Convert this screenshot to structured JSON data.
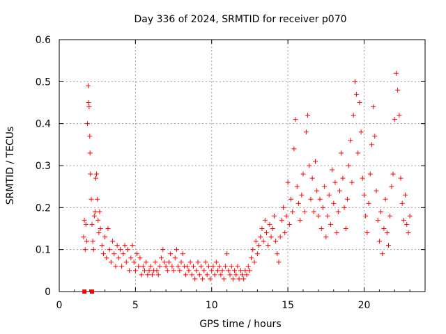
{
  "chart_data": {
    "type": "scatter",
    "title": "Day 336 of 2024, SRMTID for receiver p070",
    "xlabel": "GPS time / hours",
    "ylabel": "SRMTID / TECUs",
    "xlim": [
      0,
      24
    ],
    "ylim": [
      0,
      0.6
    ],
    "xticks": [
      0,
      5,
      10,
      15,
      20
    ],
    "yticks": [
      0,
      0.1,
      0.2,
      0.3,
      0.4,
      0.5,
      0.6
    ],
    "xtick_labels": [
      "0",
      "5",
      "10",
      "15",
      "20"
    ],
    "ytick_labels": [
      "0",
      "0.1",
      "0.2",
      "0.3",
      "0.4",
      "0.5",
      "0.6"
    ],
    "grid": true,
    "marker": "+",
    "series": [
      {
        "name": "SRMTID",
        "color": "#ff0000",
        "points": [
          [
            1.6,
            0.13
          ],
          [
            1.65,
            0.17
          ],
          [
            1.7,
            0.1
          ],
          [
            1.75,
            0.16
          ],
          [
            1.8,
            0.12
          ],
          [
            1.85,
            0.4
          ],
          [
            1.9,
            0.49
          ],
          [
            1.93,
            0.45
          ],
          [
            1.96,
            0.44
          ],
          [
            2.0,
            0.37
          ],
          [
            2.02,
            0.33
          ],
          [
            2.05,
            0.28
          ],
          [
            2.1,
            0.22
          ],
          [
            2.15,
            0.16
          ],
          [
            2.2,
            0.12
          ],
          [
            2.25,
            0.1
          ],
          [
            2.3,
            0.18
          ],
          [
            2.35,
            0.19
          ],
          [
            2.4,
            0.27
          ],
          [
            2.45,
            0.28
          ],
          [
            2.5,
            0.22
          ],
          [
            2.55,
            0.17
          ],
          [
            2.6,
            0.14
          ],
          [
            2.65,
            0.19
          ],
          [
            2.7,
            0.15
          ],
          [
            2.8,
            0.11
          ],
          [
            2.9,
            0.09
          ],
          [
            3.0,
            0.13
          ],
          [
            3.1,
            0.08
          ],
          [
            3.2,
            0.15
          ],
          [
            3.3,
            0.1
          ],
          [
            3.4,
            0.07
          ],
          [
            3.5,
            0.12
          ],
          [
            3.6,
            0.09
          ],
          [
            3.7,
            0.06
          ],
          [
            3.8,
            0.11
          ],
          [
            3.9,
            0.08
          ],
          [
            4.0,
            0.1
          ],
          [
            4.1,
            0.06
          ],
          [
            4.2,
            0.09
          ],
          [
            4.3,
            0.11
          ],
          [
            4.4,
            0.07
          ],
          [
            4.5,
            0.1
          ],
          [
            4.6,
            0.05
          ],
          [
            4.7,
            0.08
          ],
          [
            4.8,
            0.11
          ],
          [
            4.9,
            0.07
          ],
          [
            5.0,
            0.05
          ],
          [
            5.1,
            0.09
          ],
          [
            5.2,
            0.06
          ],
          [
            5.3,
            0.08
          ],
          [
            5.4,
            0.04
          ],
          [
            5.5,
            0.06
          ],
          [
            5.6,
            0.05
          ],
          [
            5.7,
            0.07
          ],
          [
            5.8,
            0.04
          ],
          [
            5.9,
            0.05
          ],
          [
            6.0,
            0.06
          ],
          [
            6.1,
            0.04
          ],
          [
            6.2,
            0.05
          ],
          [
            6.3,
            0.07
          ],
          [
            6.4,
            0.05
          ],
          [
            6.5,
            0.04
          ],
          [
            6.6,
            0.06
          ],
          [
            6.7,
            0.08
          ],
          [
            6.8,
            0.1
          ],
          [
            6.9,
            0.07
          ],
          [
            7.0,
            0.06
          ],
          [
            7.1,
            0.05
          ],
          [
            7.2,
            0.07
          ],
          [
            7.3,
            0.09
          ],
          [
            7.4,
            0.06
          ],
          [
            7.5,
            0.05
          ],
          [
            7.6,
            0.08
          ],
          [
            7.7,
            0.1
          ],
          [
            7.8,
            0.06
          ],
          [
            7.9,
            0.05
          ],
          [
            8.0,
            0.07
          ],
          [
            8.1,
            0.09
          ],
          [
            8.2,
            0.06
          ],
          [
            8.3,
            0.04
          ],
          [
            8.4,
            0.06
          ],
          [
            8.5,
            0.05
          ],
          [
            8.6,
            0.07
          ],
          [
            8.7,
            0.04
          ],
          [
            8.8,
            0.06
          ],
          [
            8.9,
            0.03
          ],
          [
            9.0,
            0.05
          ],
          [
            9.1,
            0.07
          ],
          [
            9.2,
            0.04
          ],
          [
            9.3,
            0.06
          ],
          [
            9.4,
            0.03
          ],
          [
            9.5,
            0.05
          ],
          [
            9.6,
            0.07
          ],
          [
            9.7,
            0.04
          ],
          [
            9.8,
            0.06
          ],
          [
            9.9,
            0.03
          ],
          [
            10.0,
            0.05
          ],
          [
            10.1,
            0.06
          ],
          [
            10.2,
            0.04
          ],
          [
            10.3,
            0.07
          ],
          [
            10.4,
            0.05
          ],
          [
            10.5,
            0.06
          ],
          [
            10.6,
            0.04
          ],
          [
            10.7,
            0.05
          ],
          [
            10.8,
            0.03
          ],
          [
            10.9,
            0.06
          ],
          [
            11.0,
            0.09
          ],
          [
            11.1,
            0.05
          ],
          [
            11.2,
            0.04
          ],
          [
            11.3,
            0.06
          ],
          [
            11.4,
            0.03
          ],
          [
            11.5,
            0.05
          ],
          [
            11.6,
            0.04
          ],
          [
            11.7,
            0.06
          ],
          [
            11.8,
            0.03
          ],
          [
            11.9,
            0.05
          ],
          [
            12.0,
            0.04
          ],
          [
            12.1,
            0.03
          ],
          [
            12.2,
            0.05
          ],
          [
            12.3,
            0.04
          ],
          [
            12.4,
            0.06
          ],
          [
            12.5,
            0.05
          ],
          [
            12.6,
            0.08
          ],
          [
            12.7,
            0.1
          ],
          [
            12.8,
            0.07
          ],
          [
            12.9,
            0.12
          ],
          [
            13.0,
            0.09
          ],
          [
            13.1,
            0.11
          ],
          [
            13.2,
            0.13
          ],
          [
            13.3,
            0.15
          ],
          [
            13.4,
            0.12
          ],
          [
            13.5,
            0.17
          ],
          [
            13.6,
            0.14
          ],
          [
            13.7,
            0.11
          ],
          [
            13.8,
            0.16
          ],
          [
            13.9,
            0.13
          ],
          [
            14.0,
            0.15
          ],
          [
            14.1,
            0.18
          ],
          [
            14.2,
            0.12
          ],
          [
            14.3,
            0.09
          ],
          [
            14.4,
            0.07
          ],
          [
            14.5,
            0.13
          ],
          [
            14.6,
            0.17
          ],
          [
            14.7,
            0.2
          ],
          [
            14.8,
            0.14
          ],
          [
            14.9,
            0.18
          ],
          [
            15.0,
            0.26
          ],
          [
            15.1,
            0.16
          ],
          [
            15.2,
            0.22
          ],
          [
            15.3,
            0.19
          ],
          [
            15.4,
            0.34
          ],
          [
            15.5,
            0.41
          ],
          [
            15.6,
            0.25
          ],
          [
            15.7,
            0.21
          ],
          [
            15.8,
            0.17
          ],
          [
            15.9,
            0.23
          ],
          [
            16.0,
            0.28
          ],
          [
            16.1,
            0.19
          ],
          [
            16.2,
            0.38
          ],
          [
            16.3,
            0.42
          ],
          [
            16.4,
            0.3
          ],
          [
            16.5,
            0.22
          ],
          [
            16.6,
            0.27
          ],
          [
            16.7,
            0.19
          ],
          [
            16.8,
            0.31
          ],
          [
            16.9,
            0.24
          ],
          [
            17.0,
            0.18
          ],
          [
            17.1,
            0.22
          ],
          [
            17.2,
            0.15
          ],
          [
            17.3,
            0.2
          ],
          [
            17.4,
            0.25
          ],
          [
            17.5,
            0.13
          ],
          [
            17.6,
            0.18
          ],
          [
            17.7,
            0.23
          ],
          [
            17.8,
            0.16
          ],
          [
            17.9,
            0.29
          ],
          [
            18.0,
            0.21
          ],
          [
            18.1,
            0.26
          ],
          [
            18.2,
            0.14
          ],
          [
            18.3,
            0.19
          ],
          [
            18.4,
            0.24
          ],
          [
            18.5,
            0.33
          ],
          [
            18.6,
            0.27
          ],
          [
            18.7,
            0.2
          ],
          [
            18.8,
            0.15
          ],
          [
            18.9,
            0.22
          ],
          [
            19.0,
            0.3
          ],
          [
            19.1,
            0.36
          ],
          [
            19.2,
            0.26
          ],
          [
            19.3,
            0.42
          ],
          [
            19.4,
            0.5
          ],
          [
            19.5,
            0.47
          ],
          [
            19.6,
            0.33
          ],
          [
            19.7,
            0.45
          ],
          [
            19.8,
            0.38
          ],
          [
            19.9,
            0.27
          ],
          [
            20.0,
            0.23
          ],
          [
            20.1,
            0.18
          ],
          [
            20.2,
            0.14
          ],
          [
            20.3,
            0.21
          ],
          [
            20.4,
            0.28
          ],
          [
            20.5,
            0.35
          ],
          [
            20.6,
            0.44
          ],
          [
            20.7,
            0.37
          ],
          [
            20.8,
            0.24
          ],
          [
            20.9,
            0.17
          ],
          [
            21.0,
            0.12
          ],
          [
            21.1,
            0.19
          ],
          [
            21.2,
            0.09
          ],
          [
            21.3,
            0.15
          ],
          [
            21.4,
            0.22
          ],
          [
            21.5,
            0.14
          ],
          [
            21.6,
            0.11
          ],
          [
            21.7,
            0.18
          ],
          [
            21.8,
            0.25
          ],
          [
            21.9,
            0.28
          ],
          [
            22.0,
            0.41
          ],
          [
            22.1,
            0.52
          ],
          [
            22.2,
            0.48
          ],
          [
            22.3,
            0.42
          ],
          [
            22.4,
            0.27
          ],
          [
            22.5,
            0.21
          ],
          [
            22.6,
            0.17
          ],
          [
            22.7,
            0.23
          ],
          [
            22.8,
            0.16
          ],
          [
            22.9,
            0.14
          ],
          [
            23.0,
            0.18
          ],
          [
            1.65,
            0.0
          ],
          [
            2.15,
            0.0
          ]
        ]
      }
    ]
  }
}
